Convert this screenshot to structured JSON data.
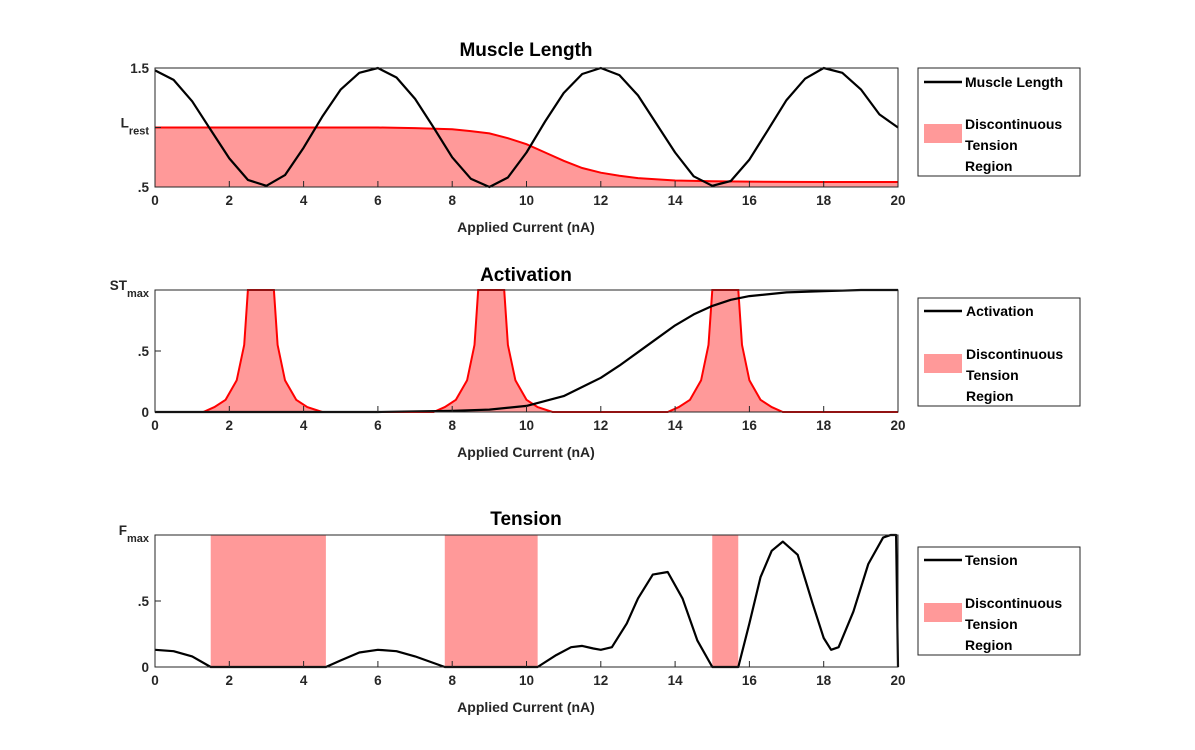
{
  "figure": {
    "x_label": "Applied Current (nA)"
  },
  "chart_data": [
    {
      "type": "line",
      "title": "Muscle Length",
      "xlabel": "Applied Current (nA)",
      "ylabel": "",
      "xlim": [
        0,
        20
      ],
      "ylim": [
        0.5,
        1.5
      ],
      "xticks": [
        "0",
        "2",
        "4",
        "6",
        "8",
        "10",
        "12",
        "14",
        "16",
        "18",
        "20"
      ],
      "yticks": [
        {
          "value": 0.5,
          "label": ".5"
        },
        {
          "value": 1.0,
          "label": "L",
          "sub": "rest"
        },
        {
          "value": 1.5,
          "label": "1.5"
        }
      ],
      "series": [
        {
          "name": "Muscle Length",
          "kind": "line",
          "color": "#000000",
          "x": [
            0,
            0.5,
            1,
            1.5,
            2,
            2.5,
            3,
            3.5,
            4,
            4.5,
            5,
            5.5,
            6,
            6.5,
            7,
            7.5,
            8,
            8.5,
            9,
            9.5,
            10,
            10.5,
            11,
            11.5,
            12,
            12.5,
            13,
            13.5,
            14,
            14.5,
            15,
            15.5,
            16,
            16.5,
            17,
            17.5,
            18,
            18.5,
            19,
            19.5,
            20
          ],
          "y": [
            1.48,
            1.4,
            1.22,
            0.98,
            0.74,
            0.56,
            0.51,
            0.6,
            0.83,
            1.09,
            1.32,
            1.46,
            1.5,
            1.42,
            1.24,
            1.0,
            0.75,
            0.57,
            0.5,
            0.58,
            0.79,
            1.05,
            1.29,
            1.45,
            1.5,
            1.44,
            1.27,
            1.03,
            0.79,
            0.59,
            0.51,
            0.55,
            0.73,
            0.98,
            1.23,
            1.41,
            1.5,
            1.46,
            1.32,
            1.11,
            1.0
          ]
        },
        {
          "name": "Discontinuous Tension Region",
          "kind": "area",
          "color": "#ff0000",
          "fill": "#ff9999",
          "x": [
            0,
            1,
            2,
            3,
            4,
            5,
            6,
            7,
            8,
            8.5,
            9,
            9.5,
            10,
            10.5,
            11,
            11.5,
            12,
            12.5,
            13,
            14,
            15,
            16,
            17,
            18,
            19,
            20
          ],
          "y": [
            1.0,
            1.0,
            1.0,
            1.0,
            1.0,
            1.0,
            1.0,
            0.995,
            0.985,
            0.97,
            0.95,
            0.91,
            0.86,
            0.79,
            0.72,
            0.66,
            0.62,
            0.595,
            0.575,
            0.555,
            0.548,
            0.545,
            0.543,
            0.542,
            0.542,
            0.542
          ]
        }
      ],
      "legend": "outside-right"
    },
    {
      "type": "line",
      "title": "Activation",
      "xlabel": "Applied Current (nA)",
      "ylabel": "",
      "xlim": [
        0,
        20
      ],
      "ylim": [
        0,
        1
      ],
      "xticks": [
        "0",
        "2",
        "4",
        "6",
        "8",
        "10",
        "12",
        "14",
        "16",
        "18",
        "20"
      ],
      "yticks": [
        {
          "value": 0,
          "label": "0"
        },
        {
          "value": 0.5,
          "label": ".5"
        },
        {
          "value": 1.0,
          "label": "ST",
          "sub": "max"
        }
      ],
      "series": [
        {
          "name": "Activation",
          "kind": "line",
          "color": "#000000",
          "x": [
            0,
            6,
            8,
            9,
            10,
            11,
            12,
            12.5,
            13,
            13.5,
            14,
            14.5,
            15,
            15.5,
            16,
            17,
            18,
            19,
            20
          ],
          "y": [
            0,
            0,
            0.01,
            0.02,
            0.05,
            0.13,
            0.28,
            0.38,
            0.49,
            0.6,
            0.71,
            0.8,
            0.87,
            0.92,
            0.95,
            0.98,
            0.99,
            1.0,
            1.0
          ]
        },
        {
          "name": "Discontinuous Tension Region",
          "kind": "area",
          "color": "#ff0000",
          "fill": "#ff9999",
          "x": [
            0,
            1.3,
            1.6,
            1.9,
            2.2,
            2.4,
            2.5,
            3.2,
            3.3,
            3.5,
            3.8,
            4.1,
            4.5,
            7.5,
            7.8,
            8.1,
            8.4,
            8.6,
            8.7,
            9.4,
            9.5,
            9.7,
            10.0,
            10.3,
            10.7,
            13.8,
            14.1,
            14.4,
            14.7,
            14.9,
            15.0,
            15.7,
            15.8,
            16.0,
            16.3,
            16.6,
            16.9,
            20
          ],
          "y": [
            0,
            0,
            0.04,
            0.1,
            0.26,
            0.55,
            1.0,
            1.0,
            0.55,
            0.26,
            0.1,
            0.04,
            0,
            0,
            0.04,
            0.1,
            0.26,
            0.55,
            1.0,
            1.0,
            0.55,
            0.26,
            0.1,
            0.04,
            0,
            0,
            0.04,
            0.1,
            0.26,
            0.55,
            1.0,
            1.0,
            0.55,
            0.26,
            0.1,
            0.04,
            0,
            0
          ]
        }
      ],
      "legend": "outside-right"
    },
    {
      "type": "line",
      "title": "Tension",
      "xlabel": "Applied Current (nA)",
      "ylabel": "",
      "xlim": [
        0,
        20
      ],
      "ylim": [
        0,
        1
      ],
      "xticks": [
        "0",
        "2",
        "4",
        "6",
        "8",
        "10",
        "12",
        "14",
        "16",
        "18",
        "20"
      ],
      "yticks": [
        {
          "value": 0,
          "label": "0"
        },
        {
          "value": 0.5,
          "label": ".5"
        },
        {
          "value": 1.0,
          "label": "F",
          "sub": "max"
        }
      ],
      "series": [
        {
          "name": "Tension",
          "kind": "line",
          "color": "#000000",
          "x": [
            0,
            0.5,
            1,
            1.5,
            4.6,
            5,
            5.5,
            6,
            6.5,
            7,
            7.5,
            7.8,
            10.3,
            10.8,
            11.2,
            11.5,
            11.8,
            12,
            12.3,
            12.7,
            13,
            13.4,
            13.8,
            14.2,
            14.6,
            15,
            15.7,
            16,
            16.3,
            16.6,
            16.9,
            17.3,
            17.7,
            18,
            18.2,
            18.4,
            18.8,
            19.2,
            19.6,
            19.8,
            19.95,
            20
          ],
          "y": [
            0.13,
            0.12,
            0.08,
            0.0,
            0.0,
            0.05,
            0.11,
            0.13,
            0.12,
            0.08,
            0.03,
            0.0,
            0.0,
            0.09,
            0.15,
            0.16,
            0.14,
            0.13,
            0.15,
            0.33,
            0.52,
            0.7,
            0.72,
            0.52,
            0.2,
            0.0,
            0.0,
            0.33,
            0.68,
            0.88,
            0.95,
            0.85,
            0.48,
            0.22,
            0.13,
            0.15,
            0.42,
            0.78,
            0.98,
            1.0,
            1.0,
            0.0
          ]
        },
        {
          "name": "Discontinuous Tension Region",
          "kind": "bands",
          "color": "#ff9999",
          "fill": "#ff9999",
          "bands": [
            [
              1.5,
              4.6
            ],
            [
              7.8,
              10.3
            ],
            [
              15.0,
              15.7
            ]
          ]
        }
      ],
      "legend": "outside-right"
    }
  ]
}
